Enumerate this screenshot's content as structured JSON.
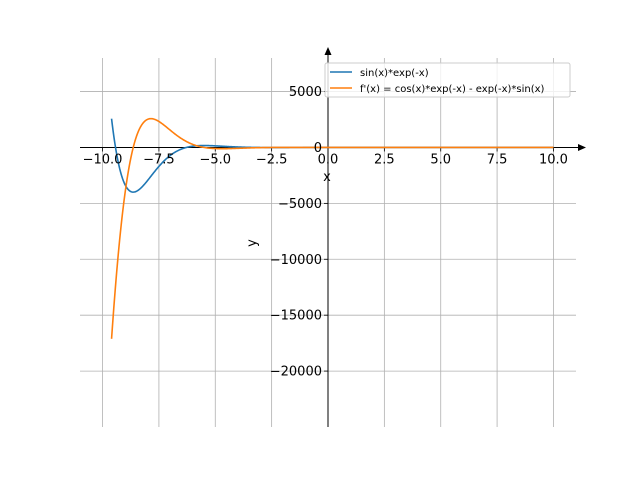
{
  "chart_data": {
    "type": "line",
    "title": "",
    "xlabel": "x",
    "ylabel": "y",
    "xlim": [
      -11.0,
      11.0
    ],
    "ylim": [
      -25000,
      8000
    ],
    "x_ticks": [
      -10.0,
      -7.5,
      -5.0,
      -2.5,
      0.0,
      2.5,
      5.0,
      7.5,
      10.0
    ],
    "x_tick_labels": [
      "−10.0",
      "−7.5",
      "−5.0",
      "−2.5",
      "0.0",
      "2.5",
      "5.0",
      "7.5",
      "10.0"
    ],
    "y_ticks": [
      5000,
      0,
      -5000,
      -10000,
      -15000,
      -20000
    ],
    "y_tick_labels": [
      "5000",
      "0",
      "−5000",
      "−10000",
      "−15000",
      "−20000"
    ],
    "grid": true,
    "legend_position": "top-right",
    "x_range": [
      -9.6,
      10.0
    ],
    "series": [
      {
        "name": "sin(x)*exp(-x)",
        "color": "#1f77b4",
        "expression": "sin(x)*exp(-x)"
      },
      {
        "name": "f'(x) = cos(x)*exp(-x) - exp(-x)*sin(x)",
        "color": "#ff7f0e",
        "expression": "cos(x)*exp(-x) - exp(-x)*sin(x)"
      }
    ]
  }
}
